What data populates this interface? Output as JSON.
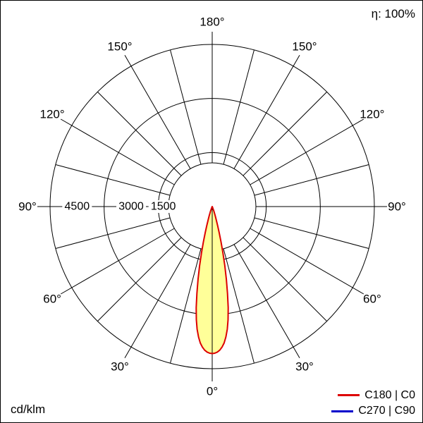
{
  "window": {
    "background": "#ffffff",
    "border_color": "#000000"
  },
  "chart_data": {
    "type": "polar",
    "description": "Polar luminous intensity distribution diagram of a narrow-beam luminaire",
    "efficiency_label": "η: 100%",
    "unit": "cd/klm",
    "radial_max": 4500,
    "radial_ticks": [
      4500,
      3000,
      1500
    ],
    "radial_tick_labels": [
      "4500",
      "3000",
      "1500"
    ],
    "angle_step_deg": 15,
    "angle_label_step_deg": 30,
    "angle_labels": [
      {
        "deg": 0,
        "text": "0°"
      },
      {
        "deg": 30,
        "text": "30°"
      },
      {
        "deg": 60,
        "text": "60°"
      },
      {
        "deg": 90,
        "text": "90°"
      },
      {
        "deg": 120,
        "text": "120°"
      },
      {
        "deg": 150,
        "text": "150°"
      },
      {
        "deg": 180,
        "text": "180°"
      }
    ],
    "grid_color": "#000000",
    "series": [
      {
        "name": "C180 | C0",
        "color": "#dd0000",
        "fill": "#ffff99",
        "points_gamma_deg_intensity": [
          [
            0,
            4080
          ],
          [
            1,
            4070
          ],
          [
            2,
            4040
          ],
          [
            3,
            3990
          ],
          [
            4,
            3910
          ],
          [
            5,
            3800
          ],
          [
            6,
            3640
          ],
          [
            7,
            3430
          ],
          [
            8,
            3170
          ],
          [
            9,
            2840
          ],
          [
            10,
            2450
          ],
          [
            11,
            2060
          ],
          [
            12,
            1680
          ],
          [
            13,
            1320
          ],
          [
            14,
            1010
          ],
          [
            15,
            750
          ],
          [
            16,
            550
          ],
          [
            17,
            390
          ],
          [
            18,
            270
          ],
          [
            20,
            130
          ],
          [
            22,
            60
          ],
          [
            25,
            20
          ],
          [
            30,
            8
          ],
          [
            40,
            3
          ],
          [
            50,
            1
          ],
          [
            70,
            0
          ],
          [
            90,
            0
          ]
        ]
      },
      {
        "name": "C270 | C90",
        "color": "#0000cc"
      }
    ]
  }
}
